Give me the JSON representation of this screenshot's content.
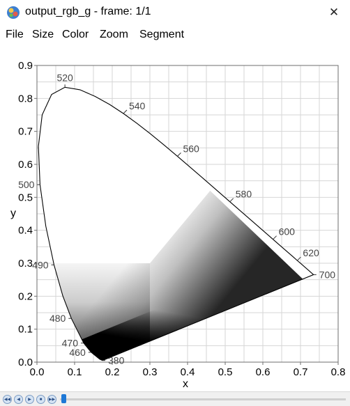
{
  "window": {
    "title": "output_rgb_g - frame: 1/1",
    "close_glyph": "✕"
  },
  "menu": {
    "items": [
      "File",
      "Size",
      "Color",
      "Zoom",
      "Segment"
    ]
  },
  "chart_data": {
    "type": "chromaticity",
    "xlabel": "x",
    "ylabel": "y",
    "xlim": [
      0.0,
      0.8
    ],
    "ylim": [
      0.0,
      0.9
    ],
    "x_ticks": [
      "0.0",
      "0.1",
      "0.2",
      "0.3",
      "0.4",
      "0.5",
      "0.6",
      "0.7",
      "0.8"
    ],
    "y_ticks": [
      "0.0",
      "0.1",
      "0.2",
      "0.3",
      "0.4",
      "0.5",
      "0.6",
      "0.7",
      "0.8",
      "0.9"
    ],
    "grid": true,
    "locus": [
      [
        0.1741,
        0.005
      ],
      [
        0.1666,
        0.0089
      ],
      [
        0.144,
        0.0297
      ],
      [
        0.1241,
        0.0578
      ],
      [
        0.0913,
        0.1327
      ],
      [
        0.0687,
        0.2007
      ],
      [
        0.0454,
        0.295
      ],
      [
        0.0235,
        0.4127
      ],
      [
        0.0082,
        0.5384
      ],
      [
        0.0039,
        0.6548
      ],
      [
        0.0139,
        0.7502
      ],
      [
        0.0389,
        0.812
      ],
      [
        0.0743,
        0.8338
      ],
      [
        0.1142,
        0.8262
      ],
      [
        0.1547,
        0.8059
      ],
      [
        0.1929,
        0.7816
      ],
      [
        0.2296,
        0.7543
      ],
      [
        0.2658,
        0.7243
      ],
      [
        0.3016,
        0.6923
      ],
      [
        0.3373,
        0.6589
      ],
      [
        0.3731,
        0.6245
      ],
      [
        0.4087,
        0.5896
      ],
      [
        0.4441,
        0.5547
      ],
      [
        0.4788,
        0.5202
      ],
      [
        0.5125,
        0.4866
      ],
      [
        0.5448,
        0.4544
      ],
      [
        0.5752,
        0.4242
      ],
      [
        0.6029,
        0.3965
      ],
      [
        0.627,
        0.3725
      ],
      [
        0.6482,
        0.3514
      ],
      [
        0.6658,
        0.334
      ],
      [
        0.6801,
        0.3197
      ],
      [
        0.6915,
        0.3083
      ],
      [
        0.7006,
        0.2993
      ],
      [
        0.7347,
        0.2653
      ]
    ],
    "wavelength_labels": [
      {
        "text": "380",
        "x": 0.1741,
        "y": 0.005,
        "dir": "right"
      },
      {
        "text": "460",
        "x": 0.144,
        "y": 0.0297,
        "dir": "left"
      },
      {
        "text": "470",
        "x": 0.1241,
        "y": 0.0578,
        "dir": "left"
      },
      {
        "text": "480",
        "x": 0.0913,
        "y": 0.1327,
        "dir": "left"
      },
      {
        "text": "490",
        "x": 0.0454,
        "y": 0.295,
        "dir": "left"
      },
      {
        "text": "500",
        "x": 0.0082,
        "y": 0.5384,
        "dir": "left"
      },
      {
        "text": "520",
        "x": 0.0743,
        "y": 0.8338,
        "dir": "up"
      },
      {
        "text": "540",
        "x": 0.2296,
        "y": 0.7543,
        "dir": "upright"
      },
      {
        "text": "560",
        "x": 0.3731,
        "y": 0.6245,
        "dir": "upright"
      },
      {
        "text": "580",
        "x": 0.5125,
        "y": 0.4866,
        "dir": "upright"
      },
      {
        "text": "600",
        "x": 0.627,
        "y": 0.3725,
        "dir": "upright"
      },
      {
        "text": "620",
        "x": 0.6915,
        "y": 0.3083,
        "dir": "upright"
      },
      {
        "text": "700",
        "x": 0.7347,
        "y": 0.2653,
        "dir": "right"
      }
    ]
  },
  "playback": {
    "buttons": [
      {
        "name": "first-frame-button",
        "glyph": "◀◀"
      },
      {
        "name": "prev-frame-button",
        "glyph": "◀"
      },
      {
        "name": "play-button",
        "glyph": "▶"
      },
      {
        "name": "stop-button",
        "glyph": "■"
      },
      {
        "name": "last-frame-button",
        "glyph": "▶▶"
      }
    ],
    "position": 0.0
  },
  "colors": {
    "plot_border": "#6e6e6e",
    "grid": "#d6d6d6",
    "locus": "#000000",
    "label": "#444444",
    "slider": "#1e78d6"
  }
}
